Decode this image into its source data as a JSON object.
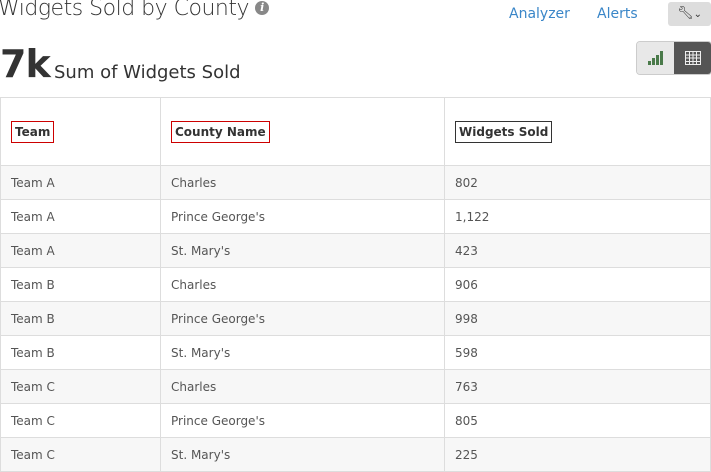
{
  "header": {
    "title": "Widgets Sold by County",
    "info_icon": "info-icon",
    "links": [
      "Analyzer",
      "Alerts"
    ],
    "tools_icon": "wrench-icon"
  },
  "summary": {
    "value": "7k",
    "label": "Sum of Widgets Sold"
  },
  "view_toggle": {
    "options": [
      "bar-chart-icon",
      "table-grid-icon"
    ],
    "active": "table-grid-icon"
  },
  "table": {
    "columns": [
      "Team",
      "County Name",
      "Widgets Sold"
    ],
    "rows": [
      [
        "Team A",
        "Charles",
        "802"
      ],
      [
        "Team A",
        "Prince George's",
        "1,122"
      ],
      [
        "Team A",
        "St. Mary's",
        "423"
      ],
      [
        "Team B",
        "Charles",
        "906"
      ],
      [
        "Team B",
        "Prince George's",
        "998"
      ],
      [
        "Team B",
        "St. Mary's",
        "598"
      ],
      [
        "Team C",
        "Charles",
        "763"
      ],
      [
        "Team C",
        "Prince George's",
        "805"
      ],
      [
        "Team C",
        "St. Mary's",
        "225"
      ]
    ]
  }
}
